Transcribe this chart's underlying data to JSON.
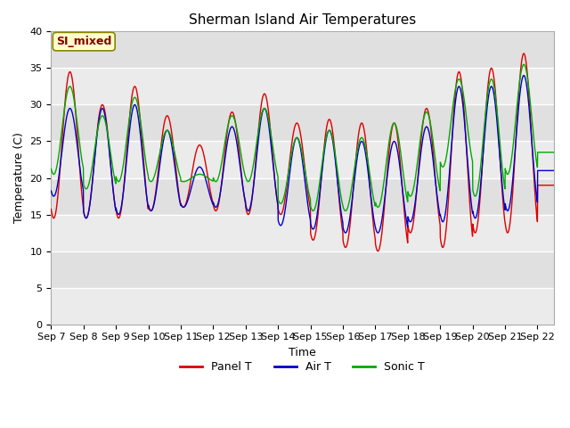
{
  "title": "Sherman Island Air Temperatures",
  "xlabel": "Time",
  "ylabel": "Temperature (C)",
  "ylim": [
    0,
    40
  ],
  "yticks": [
    0,
    5,
    10,
    15,
    20,
    25,
    30,
    35,
    40
  ],
  "bg_color": "#ebebeb",
  "band_colors": [
    "#e0e0e0",
    "#d8d8d8"
  ],
  "panel_color": "#dd0000",
  "air_color": "#0000cc",
  "sonic_color": "#00aa00",
  "annotation_text": "SI_mixed",
  "annotation_color": "#880000",
  "annotation_bg": "#ffffcc",
  "legend_labels": [
    "Panel T",
    "Air T",
    "Sonic T"
  ],
  "xtick_labels": [
    "Sep 7",
    "Sep 8",
    "Sep 9",
    "Sep 10",
    "Sep 11",
    "Sep 12",
    "Sep 13",
    "Sep 14",
    "Sep 15",
    "Sep 16",
    "Sep 17",
    "Sep 18",
    "Sep 19",
    "Sep 20",
    "Sep 21",
    "Sep 22"
  ],
  "n_days": 15.5,
  "ppd": 144,
  "panel_peaks": [
    34.5,
    30.0,
    32.5,
    28.5,
    24.5,
    29.0,
    31.5,
    27.5,
    28.0,
    27.5,
    27.5,
    29.5,
    34.5,
    35.0,
    37.0,
    19.0
  ],
  "panel_troughs": [
    14.5,
    14.5,
    14.5,
    15.5,
    16.0,
    15.5,
    15.0,
    15.0,
    11.5,
    10.5,
    10.0,
    12.5,
    10.5,
    12.5,
    12.5,
    19.0
  ],
  "air_peaks": [
    29.5,
    29.5,
    30.0,
    26.5,
    21.5,
    27.0,
    29.5,
    25.5,
    26.5,
    25.0,
    25.0,
    27.0,
    32.5,
    32.5,
    34.0,
    21.0
  ],
  "air_troughs": [
    17.5,
    14.5,
    15.0,
    15.5,
    16.0,
    16.0,
    15.5,
    13.5,
    13.0,
    12.5,
    12.5,
    14.0,
    14.0,
    14.5,
    15.5,
    21.0
  ],
  "sonic_peaks": [
    32.5,
    28.5,
    31.0,
    26.5,
    20.5,
    28.5,
    29.5,
    25.5,
    26.5,
    25.5,
    27.5,
    29.0,
    33.5,
    33.5,
    35.5,
    23.5
  ],
  "sonic_troughs": [
    20.5,
    18.5,
    19.5,
    19.5,
    19.5,
    19.5,
    19.5,
    16.5,
    15.5,
    15.5,
    16.0,
    17.5,
    21.5,
    17.5,
    20.5,
    23.5
  ],
  "peak_hour": 0.58,
  "trough_hour": 0.17
}
